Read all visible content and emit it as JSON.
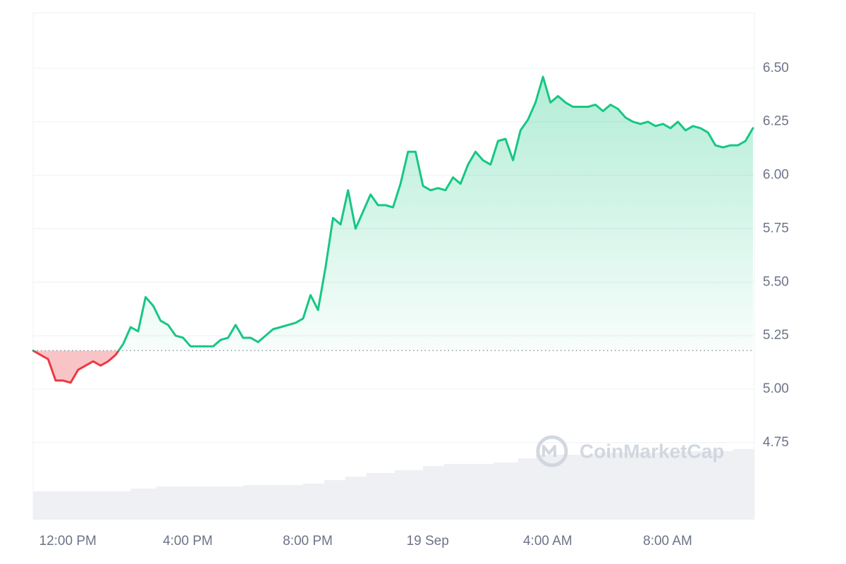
{
  "chart_data": {
    "type": "line",
    "watermark": "CoinMarketCap",
    "categories": [
      null,
      null,
      null,
      null,
      null,
      "12:00 PM",
      null,
      null,
      null,
      null,
      null,
      null,
      null,
      null,
      null,
      null,
      null,
      null,
      null,
      null,
      null,
      "4:00 PM",
      null,
      null,
      null,
      null,
      null,
      null,
      null,
      null,
      null,
      null,
      null,
      null,
      null,
      null,
      null,
      "8:00 PM",
      null,
      null,
      null,
      null,
      null,
      null,
      null,
      null,
      null,
      null,
      null,
      null,
      null,
      null,
      null,
      "19 Sep",
      null,
      null,
      null,
      null,
      null,
      null,
      null,
      null,
      null,
      null,
      null,
      null,
      null,
      null,
      null,
      "4:00 AM",
      null,
      null,
      null,
      null,
      null,
      null,
      null,
      null,
      null,
      null,
      null,
      null,
      null,
      null,
      null,
      "8:00 AM",
      null,
      null,
      null,
      null,
      null,
      null,
      null,
      null,
      null,
      null,
      null
    ],
    "values": [
      5.18,
      5.16,
      5.14,
      5.04,
      5.04,
      5.03,
      5.09,
      5.11,
      5.13,
      5.11,
      5.13,
      5.16,
      5.21,
      5.29,
      5.27,
      5.43,
      5.39,
      5.32,
      5.3,
      5.25,
      5.24,
      5.2,
      5.2,
      5.2,
      5.2,
      5.23,
      5.24,
      5.3,
      5.24,
      5.24,
      5.22,
      5.25,
      5.28,
      5.29,
      5.3,
      5.31,
      5.33,
      5.44,
      5.37,
      5.57,
      5.8,
      5.77,
      5.93,
      5.75,
      5.83,
      5.91,
      5.86,
      5.86,
      5.85,
      5.96,
      6.11,
      6.11,
      5.95,
      5.93,
      5.94,
      5.93,
      5.99,
      5.96,
      6.05,
      6.11,
      6.07,
      6.05,
      6.16,
      6.17,
      6.07,
      6.21,
      6.26,
      6.34,
      6.46,
      6.34,
      6.37,
      6.34,
      6.32,
      6.32,
      6.32,
      6.33,
      6.3,
      6.33,
      6.31,
      6.27,
      6.25,
      6.24,
      6.25,
      6.23,
      6.24,
      6.22,
      6.25,
      6.21,
      6.23,
      6.22,
      6.2,
      6.14,
      6.13,
      6.14,
      6.14,
      6.16,
      6.22
    ],
    "baseline": 5.18,
    "color": "#16c784",
    "negative_color": "#ea3943",
    "ylim": [
      4.39,
      6.76
    ],
    "yticks": [
      4.75,
      {
        "value": 5.0,
        "label": "5.00"
      },
      5.25,
      {
        "value": 5.5,
        "label": "5.50"
      },
      5.75,
      {
        "value": 6.0,
        "label": "6.00"
      },
      6.25,
      {
        "value": 6.5,
        "label": "6.50"
      }
    ],
    "grid": true
  }
}
